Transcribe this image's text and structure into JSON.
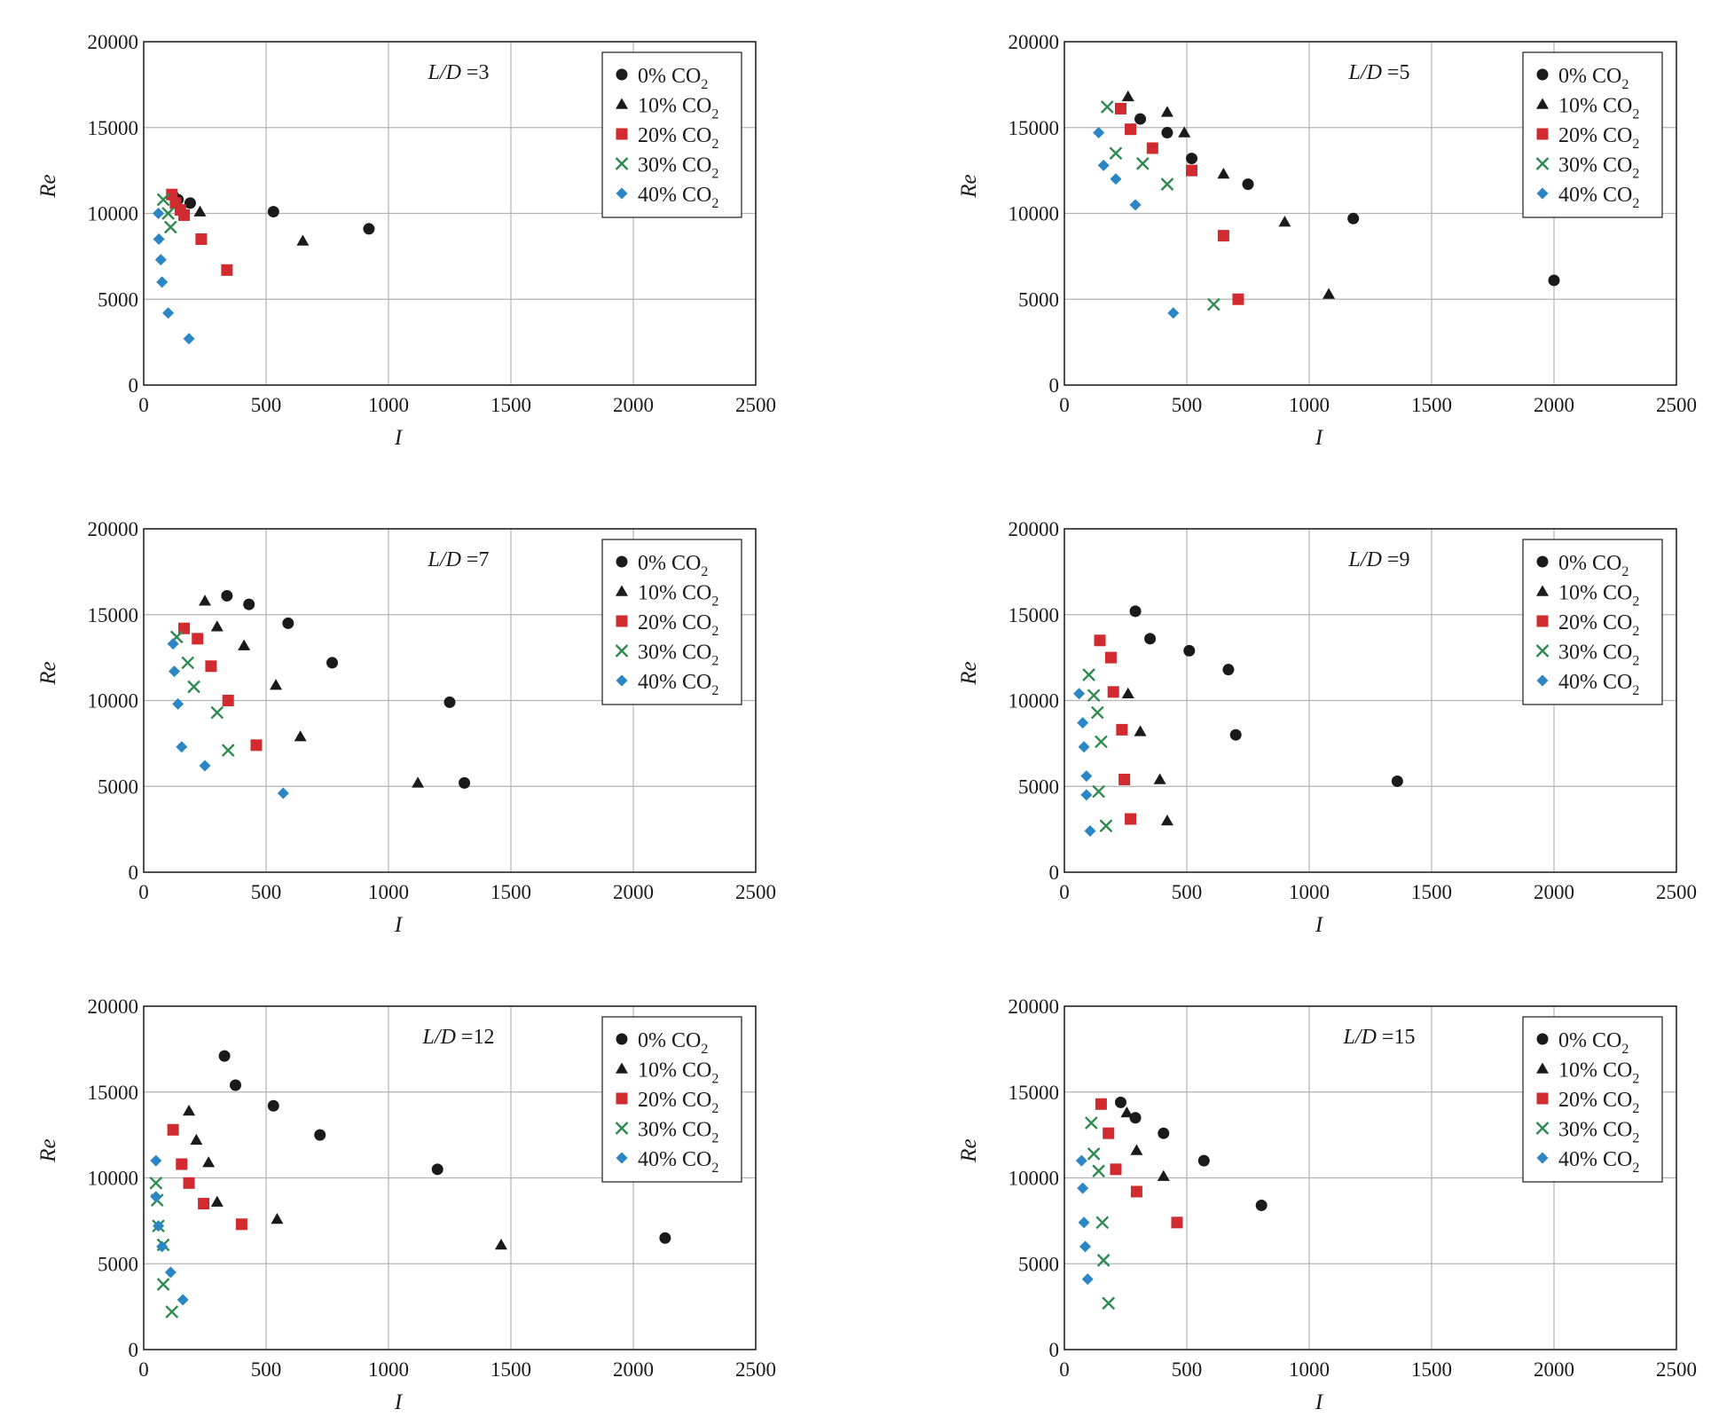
{
  "colors": {
    "grid": "#b3b3b3",
    "frame": "#1a1a1a",
    "series": [
      "#1a1a1a",
      "#1a1a1a",
      "#d12a2f",
      "#2e8b4f",
      "#2a86c4"
    ]
  },
  "legend_labels": [
    {
      "main": "0% CO",
      "sub": "2"
    },
    {
      "main": "10% CO",
      "sub": "2"
    },
    {
      "main": "20% CO",
      "sub": "2"
    },
    {
      "main": "30% CO",
      "sub": "2"
    },
    {
      "main": "40% CO",
      "sub": "2"
    }
  ],
  "chart_data": [
    {
      "type": "scatter",
      "annotation": {
        "var": "L/D",
        "eq": " =3"
      },
      "xlabel": "I",
      "ylabel": "Re",
      "xlim": [
        0,
        2500
      ],
      "ylim": [
        0,
        20000
      ],
      "xticks": [
        "0",
        "500",
        "1000",
        "1500",
        "2000",
        "2500"
      ],
      "yticks": [
        "0",
        "5000",
        "10000",
        "15000",
        "20000"
      ],
      "grid": true,
      "legend_position": "top-right",
      "series": [
        {
          "marker": "circle",
          "points": [
            [
              140,
              10800
            ],
            [
              190,
              10600
            ],
            [
              530,
              10100
            ],
            [
              920,
              9100
            ]
          ]
        },
        {
          "marker": "triangle",
          "points": [
            [
              130,
              11100
            ],
            [
              230,
              10100
            ],
            [
              650,
              8400
            ]
          ]
        },
        {
          "marker": "square",
          "points": [
            [
              115,
              11100
            ],
            [
              130,
              10600
            ],
            [
              150,
              10200
            ],
            [
              165,
              9900
            ],
            [
              235,
              8500
            ],
            [
              340,
              6700
            ]
          ]
        },
        {
          "marker": "x",
          "points": [
            [
              80,
              10800
            ],
            [
              100,
              10000
            ],
            [
              110,
              9200
            ]
          ]
        },
        {
          "marker": "diamond",
          "points": [
            [
              60,
              10000
            ],
            [
              62,
              8500
            ],
            [
              70,
              7300
            ],
            [
              75,
              6000
            ],
            [
              100,
              4200
            ],
            [
              185,
              2700
            ]
          ]
        }
      ]
    },
    {
      "type": "scatter",
      "annotation": {
        "var": "L/D",
        "eq": " =5"
      },
      "xlabel": "I",
      "ylabel": "Re",
      "xlim": [
        0,
        2500
      ],
      "ylim": [
        0,
        20000
      ],
      "xticks": [
        "0",
        "500",
        "1000",
        "1500",
        "2000",
        "2500"
      ],
      "yticks": [
        "0",
        "5000",
        "10000",
        "15000",
        "20000"
      ],
      "grid": true,
      "legend_position": "top-right",
      "series": [
        {
          "marker": "circle",
          "points": [
            [
              310,
              15500
            ],
            [
              420,
              14700
            ],
            [
              520,
              13200
            ],
            [
              750,
              11700
            ],
            [
              1180,
              9700
            ],
            [
              2000,
              6100
            ]
          ]
        },
        {
          "marker": "triangle",
          "points": [
            [
              260,
              16800
            ],
            [
              420,
              15900
            ],
            [
              490,
              14700
            ],
            [
              650,
              12300
            ],
            [
              900,
              9500
            ],
            [
              1080,
              5300
            ]
          ]
        },
        {
          "marker": "square",
          "points": [
            [
              230,
              16100
            ],
            [
              270,
              14900
            ],
            [
              360,
              13800
            ],
            [
              520,
              12500
            ],
            [
              650,
              8700
            ],
            [
              710,
              5000
            ]
          ]
        },
        {
          "marker": "x",
          "points": [
            [
              175,
              16200
            ],
            [
              210,
              13500
            ],
            [
              320,
              12900
            ],
            [
              420,
              11700
            ],
            [
              610,
              4700
            ]
          ]
        },
        {
          "marker": "diamond",
          "points": [
            [
              140,
              14700
            ],
            [
              160,
              12800
            ],
            [
              210,
              12000
            ],
            [
              290,
              10500
            ],
            [
              445,
              4200
            ]
          ]
        }
      ]
    },
    {
      "type": "scatter",
      "annotation": {
        "var": "L/D",
        "eq": " =7"
      },
      "xlabel": "I",
      "ylabel": "Re",
      "xlim": [
        0,
        2500
      ],
      "ylim": [
        0,
        20000
      ],
      "xticks": [
        "0",
        "500",
        "1000",
        "1500",
        "2000",
        "2500"
      ],
      "yticks": [
        "0",
        "5000",
        "10000",
        "15000",
        "20000"
      ],
      "grid": true,
      "legend_position": "top-right",
      "series": [
        {
          "marker": "circle",
          "points": [
            [
              340,
              16100
            ],
            [
              430,
              15600
            ],
            [
              590,
              14500
            ],
            [
              770,
              12200
            ],
            [
              1250,
              9900
            ],
            [
              1310,
              5200
            ]
          ]
        },
        {
          "marker": "triangle",
          "points": [
            [
              250,
              15800
            ],
            [
              300,
              14300
            ],
            [
              410,
              13200
            ],
            [
              540,
              10900
            ],
            [
              640,
              7900
            ],
            [
              1120,
              5200
            ]
          ]
        },
        {
          "marker": "square",
          "points": [
            [
              165,
              14200
            ],
            [
              220,
              13600
            ],
            [
              275,
              12000
            ],
            [
              345,
              10000
            ],
            [
              460,
              7400
            ]
          ]
        },
        {
          "marker": "x",
          "points": [
            [
              135,
              13700
            ],
            [
              180,
              12200
            ],
            [
              205,
              10800
            ],
            [
              300,
              9300
            ],
            [
              345,
              7100
            ]
          ]
        },
        {
          "marker": "diamond",
          "points": [
            [
              120,
              13300
            ],
            [
              125,
              11700
            ],
            [
              140,
              9800
            ],
            [
              155,
              7300
            ],
            [
              250,
              6200
            ],
            [
              570,
              4600
            ]
          ]
        }
      ]
    },
    {
      "type": "scatter",
      "annotation": {
        "var": "L/D",
        "eq": " =9"
      },
      "xlabel": "I",
      "ylabel": "Re",
      "xlim": [
        0,
        2500
      ],
      "ylim": [
        0,
        20000
      ],
      "xticks": [
        "0",
        "500",
        "1000",
        "1500",
        "2000",
        "2500"
      ],
      "yticks": [
        "0",
        "5000",
        "10000",
        "15000",
        "20000"
      ],
      "grid": true,
      "legend_position": "top-right",
      "series": [
        {
          "marker": "circle",
          "points": [
            [
              290,
              15200
            ],
            [
              350,
              13600
            ],
            [
              510,
              12900
            ],
            [
              670,
              11800
            ],
            [
              700,
              8000
            ],
            [
              1360,
              5300
            ]
          ]
        },
        {
          "marker": "triangle",
          "points": [
            [
              260,
              10400
            ],
            [
              310,
              8200
            ],
            [
              390,
              5400
            ],
            [
              420,
              3000
            ]
          ]
        },
        {
          "marker": "square",
          "points": [
            [
              145,
              13500
            ],
            [
              190,
              12500
            ],
            [
              200,
              10500
            ],
            [
              235,
              8300
            ],
            [
              245,
              5400
            ],
            [
              270,
              3100
            ]
          ]
        },
        {
          "marker": "x",
          "points": [
            [
              100,
              11500
            ],
            [
              120,
              10300
            ],
            [
              135,
              9300
            ],
            [
              150,
              7600
            ],
            [
              140,
              4700
            ],
            [
              170,
              2700
            ]
          ]
        },
        {
          "marker": "diamond",
          "points": [
            [
              60,
              10400
            ],
            [
              75,
              8700
            ],
            [
              80,
              7300
            ],
            [
              90,
              5600
            ],
            [
              90,
              4500
            ],
            [
              105,
              2400
            ]
          ]
        }
      ]
    },
    {
      "type": "scatter",
      "annotation": {
        "var": "L/D",
        "eq": " =12"
      },
      "xlabel": "I",
      "ylabel": "Re",
      "xlim": [
        0,
        2500
      ],
      "ylim": [
        0,
        20000
      ],
      "xticks": [
        "0",
        "500",
        "1000",
        "1500",
        "2000",
        "2500"
      ],
      "yticks": [
        "0",
        "5000",
        "10000",
        "15000",
        "20000"
      ],
      "grid": true,
      "legend_position": "top-right",
      "series": [
        {
          "marker": "circle",
          "points": [
            [
              330,
              17100
            ],
            [
              375,
              15400
            ],
            [
              530,
              14200
            ],
            [
              720,
              12500
            ],
            [
              1200,
              10500
            ],
            [
              2130,
              6500
            ]
          ]
        },
        {
          "marker": "triangle",
          "points": [
            [
              185,
              13900
            ],
            [
              215,
              12200
            ],
            [
              265,
              10900
            ],
            [
              300,
              8600
            ],
            [
              545,
              7600
            ],
            [
              1460,
              6100
            ]
          ]
        },
        {
          "marker": "square",
          "points": [
            [
              120,
              12800
            ],
            [
              155,
              10800
            ],
            [
              185,
              9700
            ],
            [
              245,
              8500
            ],
            [
              400,
              7300
            ]
          ]
        },
        {
          "marker": "x",
          "points": [
            [
              50,
              9700
            ],
            [
              55,
              8700
            ],
            [
              60,
              7200
            ],
            [
              80,
              6100
            ],
            [
              80,
              3800
            ],
            [
              115,
              2200
            ]
          ]
        },
        {
          "marker": "diamond",
          "points": [
            [
              50,
              11000
            ],
            [
              50,
              8900
            ],
            [
              60,
              7200
            ],
            [
              75,
              6000
            ],
            [
              110,
              4500
            ],
            [
              160,
              2900
            ]
          ]
        }
      ]
    },
    {
      "type": "scatter",
      "annotation": {
        "var": "L/D",
        "eq": " =15"
      },
      "xlabel": "I",
      "ylabel": "Re",
      "xlim": [
        0,
        2500
      ],
      "ylim": [
        0,
        20000
      ],
      "xticks": [
        "0",
        "500",
        "1000",
        "1500",
        "2000",
        "2500"
      ],
      "yticks": [
        "0",
        "5000",
        "10000",
        "15000",
        "20000"
      ],
      "grid": true,
      "legend_position": "top-right",
      "series": [
        {
          "marker": "circle",
          "points": [
            [
              230,
              14400
            ],
            [
              290,
              13500
            ],
            [
              405,
              12600
            ],
            [
              570,
              11000
            ],
            [
              805,
              8400
            ]
          ]
        },
        {
          "marker": "triangle",
          "points": [
            [
              255,
              13800
            ],
            [
              295,
              11600
            ],
            [
              405,
              10100
            ]
          ]
        },
        {
          "marker": "square",
          "points": [
            [
              150,
              14300
            ],
            [
              180,
              12600
            ],
            [
              210,
              10500
            ],
            [
              295,
              9200
            ],
            [
              460,
              7400
            ]
          ]
        },
        {
          "marker": "x",
          "points": [
            [
              110,
              13200
            ],
            [
              120,
              11400
            ],
            [
              140,
              10400
            ],
            [
              155,
              7400
            ],
            [
              160,
              5200
            ],
            [
              180,
              2700
            ]
          ]
        },
        {
          "marker": "diamond",
          "points": [
            [
              70,
              11000
            ],
            [
              75,
              9400
            ],
            [
              80,
              7400
            ],
            [
              85,
              6000
            ],
            [
              95,
              4100
            ]
          ]
        }
      ]
    }
  ]
}
